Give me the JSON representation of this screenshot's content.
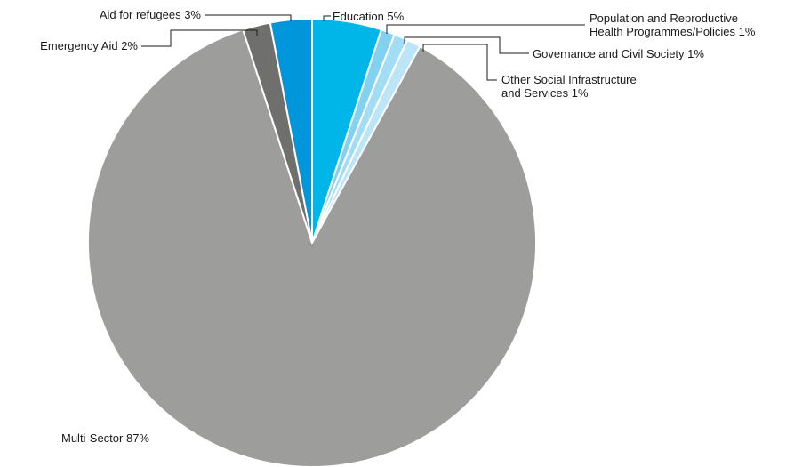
{
  "chart_data": {
    "type": "pie",
    "title": "",
    "slices": [
      {
        "name": "Education",
        "value": 5,
        "label_lines": [
          "Education 5%"
        ],
        "color": "#00b5e8"
      },
      {
        "name": "Population and Reproductive Health Programmes/Policies",
        "value": 1,
        "label_lines": [
          "Population and Reproductive",
          "Health Programmes/Policies 1%"
        ],
        "color": "#82d1f1"
      },
      {
        "name": "Governance and Civil Society",
        "value": 1,
        "label_lines": [
          "Governance and Civil Society 1%"
        ],
        "color": "#a3dcf5"
      },
      {
        "name": "Other Social Infrastructure and Services",
        "value": 1,
        "label_lines": [
          "Other Social Infrastructure",
          "and Services 1%"
        ],
        "color": "#bde5f8"
      },
      {
        "name": "Multi-Sector",
        "value": 87,
        "label_lines": [
          "Multi-Sector 87%"
        ],
        "color": "#9d9d9c"
      },
      {
        "name": "Emergency Aid",
        "value": 2,
        "label_lines": [
          "Emergency Aid 2%"
        ],
        "color": "#6f6f6e"
      },
      {
        "name": "Aid for refugees",
        "value": 3,
        "label_lines": [
          "Aid for refugees 3%"
        ],
        "color": "#0096db"
      }
    ],
    "start_angle_deg": 0,
    "direction": "clockwise",
    "legend": "none"
  }
}
